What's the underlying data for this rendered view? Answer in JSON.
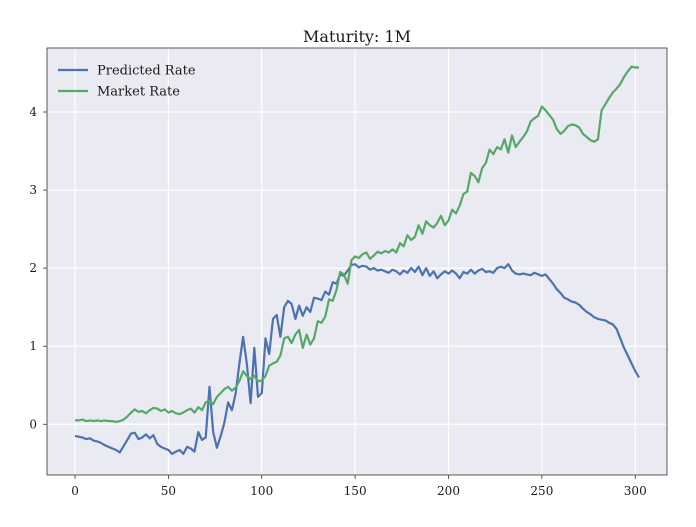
{
  "chart_data": {
    "type": "line",
    "title": "Maturity: 1M",
    "xlabel": "",
    "ylabel": "",
    "xlim": [
      -15,
      317
    ],
    "ylim": [
      -0.65,
      4.82
    ],
    "xticks": [
      0,
      50,
      100,
      150,
      200,
      250,
      300
    ],
    "yticks": [
      0,
      1,
      2,
      3,
      4
    ],
    "grid": true,
    "legend_position": "top-left",
    "series": [
      {
        "name": "Predicted Rate",
        "color": "#4c72b0",
        "points": [
          [
            0,
            -0.15
          ],
          [
            2,
            -0.16
          ],
          [
            4,
            -0.17
          ],
          [
            6,
            -0.19
          ],
          [
            8,
            -0.18
          ],
          [
            10,
            -0.21
          ],
          [
            12,
            -0.22
          ],
          [
            14,
            -0.24
          ],
          [
            16,
            -0.27
          ],
          [
            18,
            -0.29
          ],
          [
            20,
            -0.31
          ],
          [
            22,
            -0.33
          ],
          [
            24,
            -0.36
          ],
          [
            26,
            -0.28
          ],
          [
            28,
            -0.2
          ],
          [
            30,
            -0.12
          ],
          [
            32,
            -0.11
          ],
          [
            34,
            -0.19
          ],
          [
            36,
            -0.17
          ],
          [
            38,
            -0.13
          ],
          [
            40,
            -0.18
          ],
          [
            42,
            -0.14
          ],
          [
            44,
            -0.25
          ],
          [
            46,
            -0.29
          ],
          [
            48,
            -0.31
          ],
          [
            50,
            -0.33
          ],
          [
            52,
            -0.38
          ],
          [
            54,
            -0.35
          ],
          [
            56,
            -0.33
          ],
          [
            58,
            -0.38
          ],
          [
            60,
            -0.29
          ],
          [
            62,
            -0.31
          ],
          [
            64,
            -0.35
          ],
          [
            66,
            -0.1
          ],
          [
            68,
            -0.2
          ],
          [
            70,
            -0.17
          ],
          [
            72,
            0.48
          ],
          [
            74,
            -0.1
          ],
          [
            76,
            -0.3
          ],
          [
            78,
            -0.15
          ],
          [
            80,
            0.02
          ],
          [
            82,
            0.28
          ],
          [
            84,
            0.18
          ],
          [
            86,
            0.39
          ],
          [
            88,
            0.77
          ],
          [
            90,
            1.12
          ],
          [
            92,
            0.78
          ],
          [
            94,
            0.27
          ],
          [
            96,
            0.98
          ],
          [
            98,
            0.35
          ],
          [
            100,
            0.4
          ],
          [
            102,
            1.1
          ],
          [
            104,
            0.9
          ],
          [
            106,
            1.35
          ],
          [
            108,
            1.4
          ],
          [
            110,
            1.12
          ],
          [
            112,
            1.5
          ],
          [
            114,
            1.58
          ],
          [
            116,
            1.54
          ],
          [
            118,
            1.35
          ],
          [
            120,
            1.52
          ],
          [
            122,
            1.39
          ],
          [
            124,
            1.5
          ],
          [
            126,
            1.44
          ],
          [
            128,
            1.62
          ],
          [
            130,
            1.61
          ],
          [
            132,
            1.59
          ],
          [
            134,
            1.7
          ],
          [
            136,
            1.66
          ],
          [
            138,
            1.82
          ],
          [
            140,
            1.8
          ],
          [
            142,
            1.92
          ],
          [
            144,
            1.9
          ],
          [
            146,
            1.97
          ],
          [
            148,
            2.04
          ],
          [
            150,
            2.05
          ],
          [
            152,
            2.01
          ],
          [
            154,
            2.03
          ],
          [
            156,
            2.02
          ],
          [
            158,
            1.98
          ],
          [
            160,
            2.0
          ],
          [
            162,
            1.97
          ],
          [
            164,
            1.98
          ],
          [
            166,
            1.96
          ],
          [
            168,
            1.94
          ],
          [
            170,
            1.98
          ],
          [
            172,
            1.96
          ],
          [
            174,
            1.92
          ],
          [
            176,
            1.97
          ],
          [
            178,
            1.94
          ],
          [
            180,
            2.0
          ],
          [
            182,
            1.95
          ],
          [
            184,
            2.02
          ],
          [
            186,
            1.91
          ],
          [
            188,
            2.0
          ],
          [
            190,
            1.9
          ],
          [
            192,
            1.96
          ],
          [
            194,
            1.87
          ],
          [
            196,
            1.92
          ],
          [
            198,
            1.96
          ],
          [
            200,
            1.93
          ],
          [
            202,
            1.97
          ],
          [
            204,
            1.93
          ],
          [
            206,
            1.87
          ],
          [
            208,
            1.95
          ],
          [
            210,
            1.93
          ],
          [
            212,
            1.98
          ],
          [
            214,
            1.93
          ],
          [
            216,
            1.97
          ],
          [
            218,
            1.99
          ],
          [
            220,
            1.95
          ],
          [
            222,
            1.96
          ],
          [
            224,
            1.94
          ],
          [
            226,
            2.0
          ],
          [
            228,
            2.02
          ],
          [
            230,
            2.0
          ],
          [
            232,
            2.05
          ],
          [
            234,
            1.97
          ],
          [
            236,
            1.93
          ],
          [
            238,
            1.92
          ],
          [
            240,
            1.93
          ],
          [
            242,
            1.92
          ],
          [
            244,
            1.91
          ],
          [
            246,
            1.94
          ],
          [
            248,
            1.92
          ],
          [
            250,
            1.9
          ],
          [
            252,
            1.92
          ],
          [
            254,
            1.86
          ],
          [
            256,
            1.8
          ],
          [
            258,
            1.73
          ],
          [
            260,
            1.68
          ],
          [
            262,
            1.62
          ],
          [
            264,
            1.6
          ],
          [
            266,
            1.57
          ],
          [
            268,
            1.56
          ],
          [
            270,
            1.53
          ],
          [
            272,
            1.48
          ],
          [
            274,
            1.44
          ],
          [
            276,
            1.41
          ],
          [
            278,
            1.37
          ],
          [
            280,
            1.35
          ],
          [
            282,
            1.34
          ],
          [
            284,
            1.33
          ],
          [
            286,
            1.3
          ],
          [
            288,
            1.28
          ],
          [
            290,
            1.22
          ],
          [
            292,
            1.1
          ],
          [
            294,
            0.98
          ],
          [
            296,
            0.88
          ],
          [
            298,
            0.78
          ],
          [
            300,
            0.68
          ],
          [
            302,
            0.6
          ]
        ]
      },
      {
        "name": "Market Rate",
        "color": "#55a868",
        "points": [
          [
            0,
            0.05
          ],
          [
            2,
            0.05
          ],
          [
            4,
            0.06
          ],
          [
            6,
            0.04
          ],
          [
            8,
            0.05
          ],
          [
            10,
            0.04
          ],
          [
            12,
            0.05
          ],
          [
            14,
            0.04
          ],
          [
            16,
            0.05
          ],
          [
            18,
            0.04
          ],
          [
            20,
            0.04
          ],
          [
            22,
            0.03
          ],
          [
            24,
            0.04
          ],
          [
            26,
            0.06
          ],
          [
            28,
            0.1
          ],
          [
            30,
            0.15
          ],
          [
            32,
            0.19
          ],
          [
            34,
            0.16
          ],
          [
            36,
            0.17
          ],
          [
            38,
            0.14
          ],
          [
            40,
            0.18
          ],
          [
            42,
            0.21
          ],
          [
            44,
            0.2
          ],
          [
            46,
            0.17
          ],
          [
            48,
            0.19
          ],
          [
            50,
            0.15
          ],
          [
            52,
            0.17
          ],
          [
            54,
            0.14
          ],
          [
            56,
            0.13
          ],
          [
            58,
            0.15
          ],
          [
            60,
            0.18
          ],
          [
            62,
            0.2
          ],
          [
            64,
            0.15
          ],
          [
            66,
            0.22
          ],
          [
            68,
            0.18
          ],
          [
            70,
            0.28
          ],
          [
            72,
            0.3
          ],
          [
            74,
            0.26
          ],
          [
            76,
            0.35
          ],
          [
            78,
            0.4
          ],
          [
            80,
            0.45
          ],
          [
            82,
            0.48
          ],
          [
            84,
            0.43
          ],
          [
            86,
            0.47
          ],
          [
            88,
            0.55
          ],
          [
            90,
            0.68
          ],
          [
            92,
            0.62
          ],
          [
            94,
            0.58
          ],
          [
            96,
            0.62
          ],
          [
            98,
            0.55
          ],
          [
            100,
            0.56
          ],
          [
            102,
            0.62
          ],
          [
            104,
            0.75
          ],
          [
            106,
            0.78
          ],
          [
            108,
            0.8
          ],
          [
            110,
            0.88
          ],
          [
            112,
            1.1
          ],
          [
            114,
            1.12
          ],
          [
            116,
            1.04
          ],
          [
            118,
            1.15
          ],
          [
            120,
            1.21
          ],
          [
            122,
            0.98
          ],
          [
            124,
            1.15
          ],
          [
            126,
            1.02
          ],
          [
            128,
            1.1
          ],
          [
            130,
            1.32
          ],
          [
            132,
            1.3
          ],
          [
            134,
            1.38
          ],
          [
            136,
            1.6
          ],
          [
            138,
            1.58
          ],
          [
            140,
            1.72
          ],
          [
            142,
            1.95
          ],
          [
            144,
            1.92
          ],
          [
            146,
            1.8
          ],
          [
            148,
            2.1
          ],
          [
            150,
            2.15
          ],
          [
            152,
            2.13
          ],
          [
            154,
            2.18
          ],
          [
            156,
            2.2
          ],
          [
            158,
            2.12
          ],
          [
            160,
            2.16
          ],
          [
            162,
            2.21
          ],
          [
            164,
            2.19
          ],
          [
            166,
            2.22
          ],
          [
            168,
            2.2
          ],
          [
            170,
            2.24
          ],
          [
            172,
            2.2
          ],
          [
            174,
            2.32
          ],
          [
            176,
            2.28
          ],
          [
            178,
            2.42
          ],
          [
            180,
            2.36
          ],
          [
            182,
            2.4
          ],
          [
            184,
            2.55
          ],
          [
            186,
            2.44
          ],
          [
            188,
            2.6
          ],
          [
            190,
            2.55
          ],
          [
            192,
            2.52
          ],
          [
            194,
            2.58
          ],
          [
            196,
            2.67
          ],
          [
            198,
            2.55
          ],
          [
            200,
            2.61
          ],
          [
            202,
            2.75
          ],
          [
            204,
            2.7
          ],
          [
            206,
            2.8
          ],
          [
            208,
            2.95
          ],
          [
            210,
            2.98
          ],
          [
            212,
            3.22
          ],
          [
            214,
            3.18
          ],
          [
            216,
            3.1
          ],
          [
            218,
            3.28
          ],
          [
            220,
            3.35
          ],
          [
            222,
            3.52
          ],
          [
            224,
            3.46
          ],
          [
            226,
            3.55
          ],
          [
            228,
            3.52
          ],
          [
            230,
            3.65
          ],
          [
            232,
            3.48
          ],
          [
            234,
            3.7
          ],
          [
            236,
            3.55
          ],
          [
            238,
            3.62
          ],
          [
            240,
            3.68
          ],
          [
            242,
            3.75
          ],
          [
            244,
            3.88
          ],
          [
            246,
            3.92
          ],
          [
            248,
            3.95
          ],
          [
            250,
            4.07
          ],
          [
            252,
            4.02
          ],
          [
            254,
            3.96
          ],
          [
            256,
            3.9
          ],
          [
            258,
            3.78
          ],
          [
            260,
            3.72
          ],
          [
            262,
            3.76
          ],
          [
            264,
            3.82
          ],
          [
            266,
            3.84
          ],
          [
            268,
            3.83
          ],
          [
            270,
            3.8
          ],
          [
            272,
            3.72
          ],
          [
            274,
            3.68
          ],
          [
            276,
            3.64
          ],
          [
            278,
            3.62
          ],
          [
            280,
            3.65
          ],
          [
            282,
            4.02
          ],
          [
            284,
            4.1
          ],
          [
            286,
            4.18
          ],
          [
            288,
            4.25
          ],
          [
            290,
            4.3
          ],
          [
            292,
            4.36
          ],
          [
            294,
            4.45
          ],
          [
            296,
            4.52
          ],
          [
            298,
            4.58
          ],
          [
            300,
            4.57
          ],
          [
            302,
            4.57
          ]
        ]
      }
    ]
  }
}
